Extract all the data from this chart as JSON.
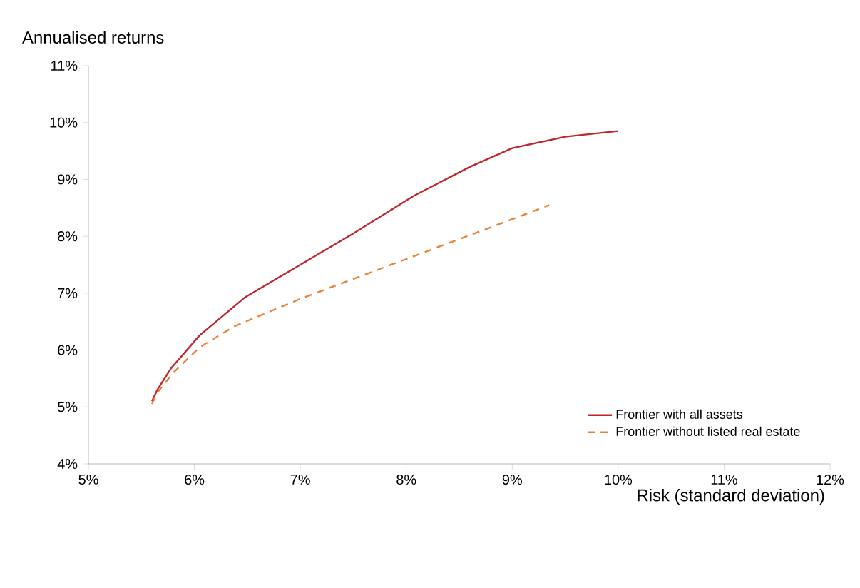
{
  "chart_data": {
    "type": "line",
    "ylabel": "Annualised returns",
    "xlabel": "Risk (standard deviation)",
    "xlim": [
      5,
      12
    ],
    "ylim": [
      4,
      11
    ],
    "xticks": [
      {
        "value": 5,
        "label": "5%"
      },
      {
        "value": 6,
        "label": "6%"
      },
      {
        "value": 7,
        "label": "7%"
      },
      {
        "value": 8,
        "label": "8%"
      },
      {
        "value": 9,
        "label": "9%"
      },
      {
        "value": 10,
        "label": "10%"
      },
      {
        "value": 11,
        "label": "11%"
      },
      {
        "value": 12,
        "label": "12%"
      }
    ],
    "yticks": [
      {
        "value": 4,
        "label": "4%"
      },
      {
        "value": 5,
        "label": "5%"
      },
      {
        "value": 6,
        "label": "6%"
      },
      {
        "value": 7,
        "label": "7%"
      },
      {
        "value": 8,
        "label": "8%"
      },
      {
        "value": 9,
        "label": "9%"
      },
      {
        "value": 10,
        "label": "10%"
      },
      {
        "value": 11,
        "label": "11%"
      }
    ],
    "grid": false,
    "legend": "bottom right",
    "series": [
      {
        "name": "Frontier with all assets",
        "color": "#c0272d",
        "line_style": "solid",
        "x": [
          5.6,
          5.65,
          5.78,
          6.05,
          6.48,
          7.0,
          7.5,
          8.07,
          8.6,
          9.0,
          9.5,
          10.0
        ],
        "values": [
          5.1,
          5.3,
          5.68,
          6.26,
          6.93,
          7.5,
          8.05,
          8.71,
          9.22,
          9.55,
          9.75,
          9.85
        ]
      },
      {
        "name": "Frontier without listed real estate",
        "color": "#e8843a",
        "line_style": "dashed",
        "x": [
          5.6,
          5.65,
          5.8,
          6.05,
          6.38,
          7.0,
          7.5,
          8.0,
          8.5,
          9.0,
          9.35
        ],
        "values": [
          5.05,
          5.25,
          5.6,
          6.05,
          6.42,
          6.9,
          7.25,
          7.6,
          7.95,
          8.3,
          8.55
        ]
      }
    ]
  }
}
